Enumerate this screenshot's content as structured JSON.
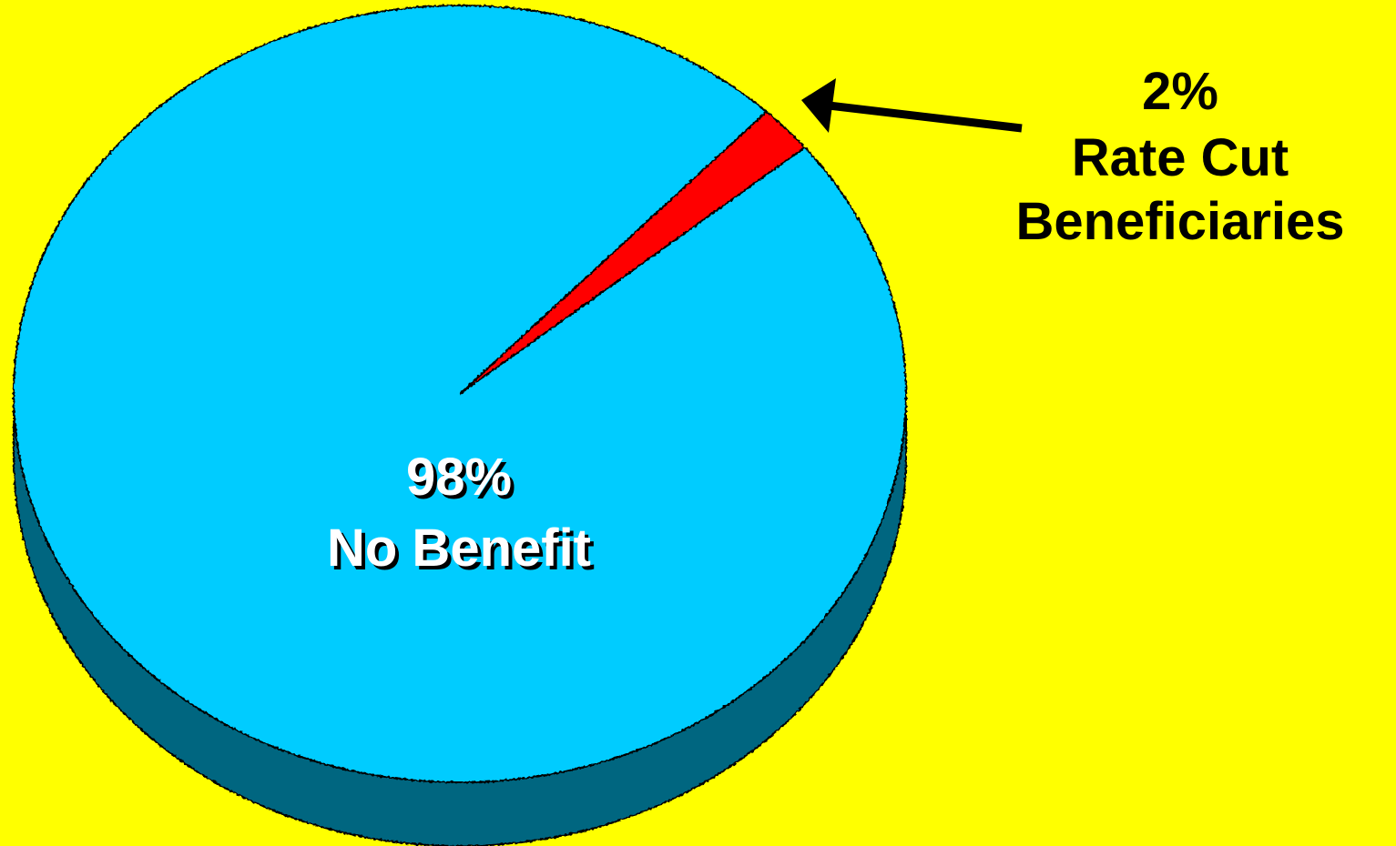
{
  "colors": {
    "background": "#FFFF00",
    "main_top": "#00CCFF",
    "main_side": "#006680",
    "minor_slice": "#FF0000",
    "outline": "#000000",
    "main_label_fill": "#FFFFFF",
    "callout_fill": "#000000"
  },
  "chart_data": {
    "type": "pie",
    "style": "3d",
    "slices": [
      {
        "name": "No Benefit",
        "value": 98,
        "label_pct": "98%",
        "label_text": "No Benefit",
        "color": "#00CCFF"
      },
      {
        "name": "Rate Cut Beneficiaries",
        "value": 2,
        "label_pct": "2%",
        "label_line1": "Rate Cut",
        "label_line2": "Beneficiaries",
        "color": "#FF0000"
      }
    ],
    "callout": {
      "arrow": true,
      "target": "Rate Cut Beneficiaries"
    }
  }
}
